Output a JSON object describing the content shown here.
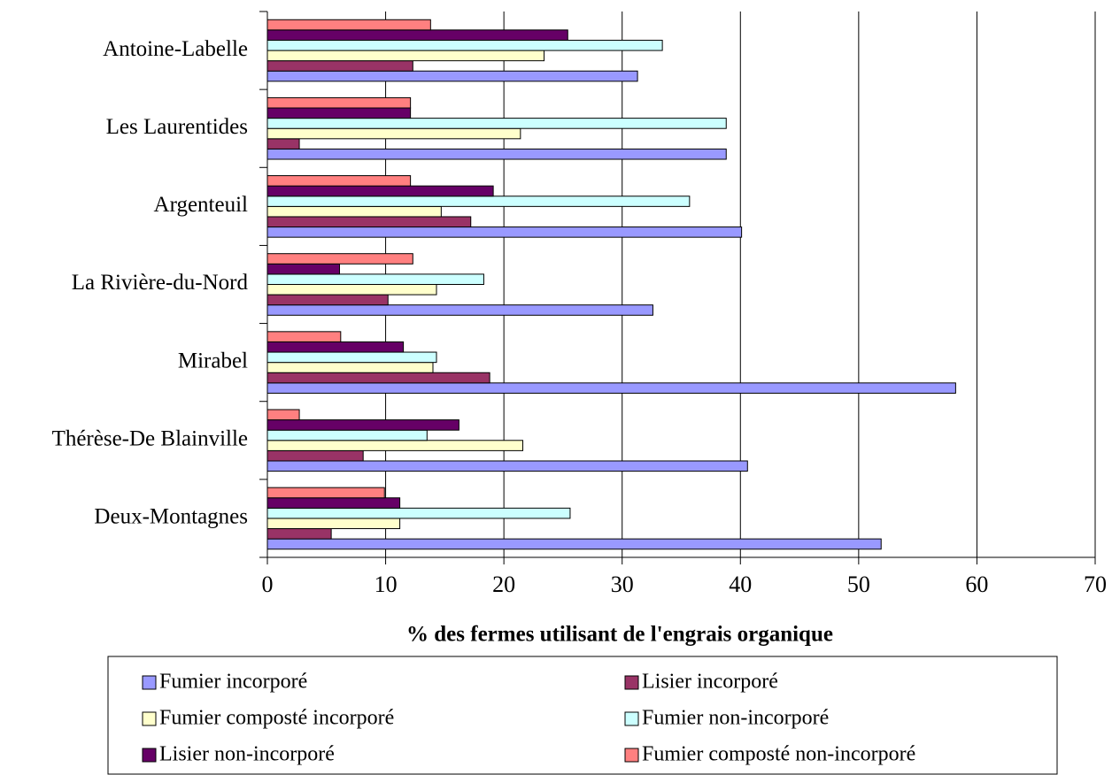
{
  "chart_data": {
    "type": "bar",
    "orientation": "horizontal",
    "x_label": "% des fermes utilisant de l'engrais organique",
    "categories": [
      "Antoine-Labelle",
      "Les Laurentides",
      "Argenteuil",
      "La Rivière-du-Nord",
      "Mirabel",
      "Thérèse-De Blainville",
      "Deux-Montagnes"
    ],
    "series": [
      {
        "name": "Fumier incorporé",
        "color": "#9999ff",
        "values": [
          31.3,
          38.8,
          40.1,
          32.6,
          58.2,
          40.6,
          51.9
        ]
      },
      {
        "name": "Lisier incorporé",
        "color": "#993366",
        "values": [
          12.3,
          2.7,
          17.2,
          10.2,
          18.8,
          8.1,
          5.4
        ]
      },
      {
        "name": "Fumier composté incorporé",
        "color": "#ffffcc",
        "values": [
          23.4,
          21.4,
          14.7,
          14.3,
          14.0,
          21.6,
          11.2
        ]
      },
      {
        "name": "Fumier non-incorporé",
        "color": "#ccffff",
        "values": [
          33.4,
          38.8,
          35.7,
          18.3,
          14.3,
          13.5,
          25.6
        ]
      },
      {
        "name": "Lisier non-incorporé",
        "color": "#660066",
        "values": [
          25.4,
          12.1,
          19.1,
          6.1,
          11.5,
          16.2,
          11.2
        ]
      },
      {
        "name": "Fumier composté non-incorporé",
        "color": "#ff8080",
        "values": [
          13.8,
          12.1,
          12.1,
          12.3,
          6.2,
          2.7,
          9.9
        ]
      }
    ],
    "xlim": [
      0,
      70
    ],
    "xticks": [
      0,
      10,
      20,
      30,
      40,
      50,
      60,
      70
    ],
    "grid": true,
    "legend": "bottom"
  }
}
